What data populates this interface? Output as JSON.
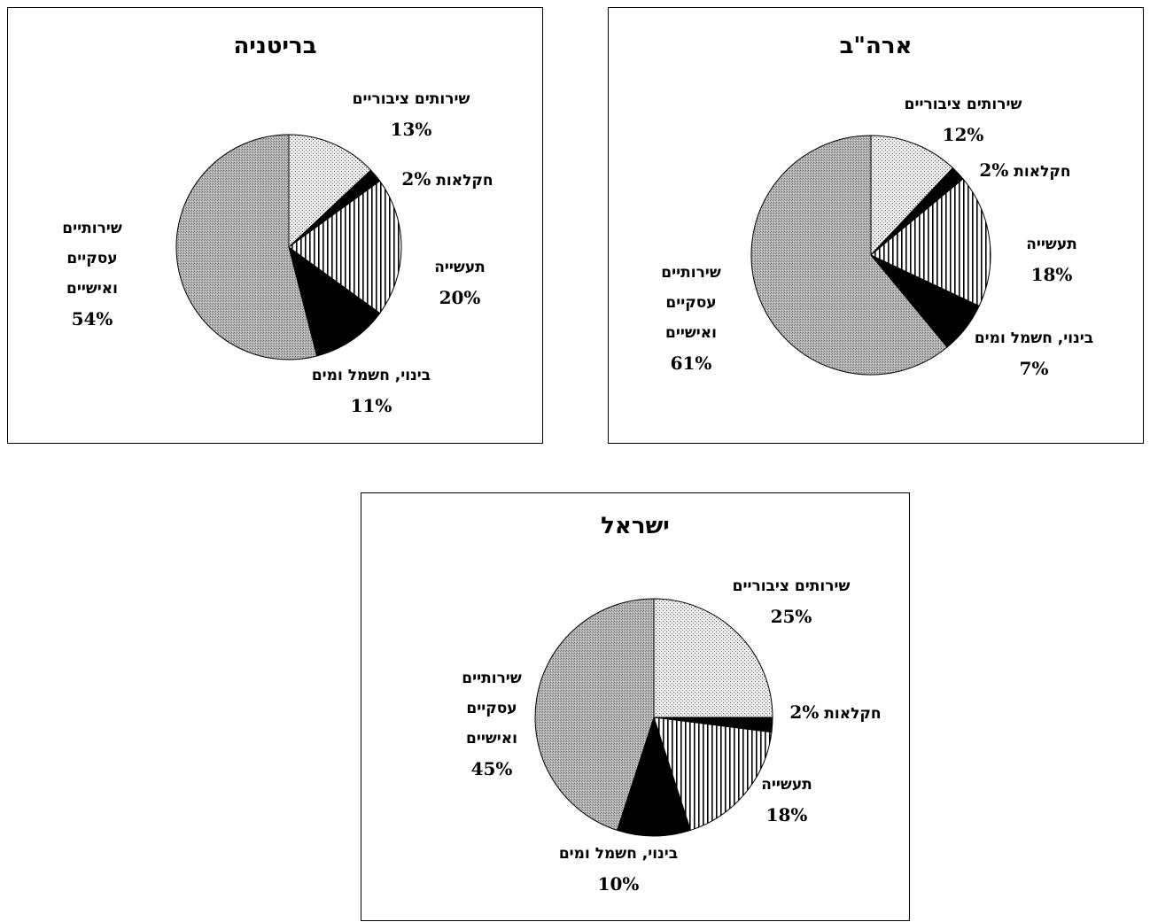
{
  "chart_data": [
    {
      "type": "pie",
      "title": "בריטניה",
      "slices": [
        {
          "label": "שירותים ציבוריים",
          "value": 13,
          "value_label": "13%",
          "pattern": "dots"
        },
        {
          "label": "חקלאות",
          "value": 2,
          "value_label": "2%",
          "pattern": "black"
        },
        {
          "label": "תעשייה",
          "value": 20,
          "value_label": "20%",
          "pattern": "vlines"
        },
        {
          "label": "בינוי, חשמל ומים",
          "value": 11,
          "value_label": "11%",
          "pattern": "black"
        },
        {
          "label": "שירותים עסקיים ואישיים",
          "label_lines": [
            "שירותיים",
            "עסקיים",
            "ואישיים"
          ],
          "value": 54,
          "value_label": "54%",
          "pattern": "grey"
        }
      ]
    },
    {
      "type": "pie",
      "title": "ארה\"ב",
      "slices": [
        {
          "label": "שירותים ציבוריים",
          "value": 12,
          "value_label": "12%",
          "pattern": "dots"
        },
        {
          "label": "חקלאות",
          "value": 2,
          "value_label": "2%",
          "pattern": "black"
        },
        {
          "label": "תעשייה",
          "value": 18,
          "value_label": "18%",
          "pattern": "vlines"
        },
        {
          "label": "בינוי, חשמל ומים",
          "value": 7,
          "value_label": "7%",
          "pattern": "black"
        },
        {
          "label": "שירותים עסקיים ואישיים",
          "label_lines": [
            "שירותיים",
            "עסקיים",
            "ואישיים"
          ],
          "value": 61,
          "value_label": "61%",
          "pattern": "grey"
        }
      ]
    },
    {
      "type": "pie",
      "title": "ישראל",
      "slices": [
        {
          "label": "שירותים ציבוריים",
          "value": 25,
          "value_label": "25%",
          "pattern": "dots"
        },
        {
          "label": "חקלאות",
          "value": 2,
          "value_label": "2%",
          "pattern": "black"
        },
        {
          "label": "תעשייה",
          "value": 18,
          "value_label": "18%",
          "pattern": "vlines"
        },
        {
          "label": "בינוי, חשמל ומים",
          "value": 10,
          "value_label": "10%",
          "pattern": "black"
        },
        {
          "label": "שירותים עסקיים ואישיים",
          "label_lines": [
            "שירותיים",
            "עסקיים",
            "ואישיים"
          ],
          "value": 45,
          "value_label": "45%",
          "pattern": "grey"
        }
      ]
    }
  ],
  "colors": {
    "dots": "#e4e4e4",
    "grey": "#a9a9a9",
    "black": "#000000",
    "vlines": "#ffffff"
  }
}
